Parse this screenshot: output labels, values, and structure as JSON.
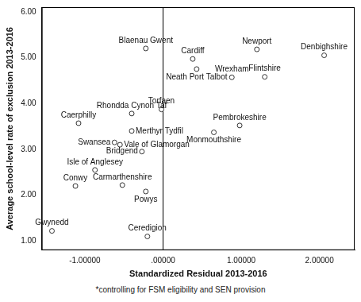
{
  "chart_data": {
    "type": "scatter",
    "x_label": "Standardized Residual 2013-2016",
    "y_label": "Average school-level rate of exclusion 2013-2016",
    "footnote": "*controlling for FSM eligibility and SEN provision",
    "point_labels": [
      "Gwynedd",
      "Conwy",
      "Isle of Anglesey",
      "Caerphilly",
      "Swansea",
      "Bridgend",
      "Vale of Glamorgan",
      "Carmarthenshire",
      "Merthyr Tydfil",
      "Rhondda Cynon Taf",
      "Blaenau Gwent",
      "Ceredigion",
      "Powys",
      "Torfaen",
      "Cardiff",
      "Neath Port Talbot",
      "Monmouthshire",
      "Wrexham",
      "Newport",
      "Flintshire",
      "Pembrokeshire",
      "Denbighshire"
    ],
    "x": [
      -1.42,
      -1.12,
      -0.87,
      -1.08,
      -0.62,
      -0.27,
      -0.55,
      -0.52,
      -0.4,
      -0.4,
      -0.22,
      -0.2,
      -0.22,
      -0.02,
      0.38,
      0.43,
      0.65,
      0.88,
      1.2,
      1.3,
      0.98,
      2.06
    ],
    "values": [
      1.22,
      2.2,
      2.55,
      3.57,
      3.15,
      2.95,
      3.1,
      2.22,
      3.4,
      3.78,
      5.2,
      1.1,
      2.08,
      3.87,
      4.97,
      4.75,
      3.37,
      4.57,
      5.18,
      4.58,
      3.52,
      5.05
    ],
    "xlim": [
      -1.55,
      2.45
    ],
    "ylim": [
      0.8,
      6.1
    ],
    "xticks": [
      {
        "value": -1,
        "label": "-1.00000"
      },
      {
        "value": 0,
        "label": ".00000"
      },
      {
        "value": 1,
        "label": "1.00000"
      },
      {
        "value": 2,
        "label": "2.00000"
      }
    ],
    "yticks": [
      {
        "value": 1,
        "label": "1.00"
      },
      {
        "value": 2,
        "label": "2.00"
      },
      {
        "value": 3,
        "label": "3.00"
      },
      {
        "value": 4,
        "label": "4.00"
      },
      {
        "value": 5,
        "label": "5.00"
      },
      {
        "value": 6,
        "label": "6.00"
      }
    ],
    "reference_lines": [
      {
        "axis": "x",
        "value": 0
      }
    ],
    "color": "#333333",
    "marker": "circle",
    "grid": false
  }
}
